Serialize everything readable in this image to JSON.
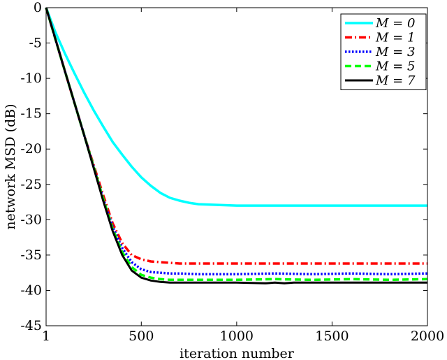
{
  "chart_data": {
    "type": "line",
    "title": "",
    "xlabel": "iteration number",
    "ylabel": "network MSD (dB)",
    "xlim": [
      1,
      2000
    ],
    "ylim": [
      -45,
      0
    ],
    "xticks": [
      1,
      500,
      1000,
      1500,
      2000
    ],
    "yticks": [
      0,
      -5,
      -10,
      -15,
      -20,
      -25,
      -30,
      -35,
      -40,
      -45
    ],
    "xtick_labels": [
      "1",
      "500",
      "1000",
      "1500",
      "2000"
    ],
    "ytick_labels": [
      "0",
      "-5",
      "-10",
      "-15",
      "-20",
      "-25",
      "-30",
      "-35",
      "-40",
      "-45"
    ],
    "grid": false,
    "legend_position": "top-right",
    "series": [
      {
        "name": "M = 0",
        "color": "#00ffff",
        "dash": "solid",
        "x": [
          1,
          50,
          100,
          150,
          200,
          250,
          300,
          350,
          400,
          450,
          500,
          550,
          600,
          650,
          700,
          750,
          800,
          900,
          1000,
          1200,
          1400,
          1600,
          1800,
          2000
        ],
        "y": [
          0,
          -3.5,
          -6.5,
          -9.3,
          -12,
          -14.5,
          -16.8,
          -19,
          -20.8,
          -22.5,
          -24,
          -25.2,
          -26.2,
          -26.9,
          -27.3,
          -27.6,
          -27.8,
          -27.9,
          -28,
          -28,
          -28,
          -28,
          -28,
          -28
        ]
      },
      {
        "name": "M = 1",
        "color": "#ff0000",
        "dash": "dashdot",
        "x": [
          1,
          100,
          200,
          300,
          350,
          400,
          450,
          500,
          550,
          600,
          650,
          700,
          800,
          1000,
          1200,
          1400,
          1600,
          1800,
          2000
        ],
        "y": [
          0,
          -9,
          -18,
          -26.5,
          -30.5,
          -33.3,
          -35,
          -35.6,
          -35.9,
          -36,
          -36.1,
          -36.2,
          -36.2,
          -36.2,
          -36.2,
          -36.2,
          -36.2,
          -36.2,
          -36.2
        ]
      },
      {
        "name": "M = 3",
        "color": "#0000ff",
        "dash": "dotted",
        "x": [
          1,
          100,
          200,
          300,
          350,
          400,
          450,
          500,
          550,
          600,
          650,
          700,
          800,
          1000,
          1200,
          1400,
          1600,
          1800,
          2000
        ],
        "y": [
          0,
          -9,
          -18,
          -27,
          -31,
          -34,
          -36,
          -37,
          -37.4,
          -37.5,
          -37.6,
          -37.6,
          -37.7,
          -37.7,
          -37.6,
          -37.7,
          -37.6,
          -37.7,
          -37.6
        ]
      },
      {
        "name": "M = 5",
        "color": "#00ff00",
        "dash": "dashed",
        "x": [
          1,
          100,
          200,
          300,
          350,
          400,
          450,
          500,
          550,
          600,
          650,
          700,
          800,
          1000,
          1200,
          1400,
          1600,
          1800,
          2000
        ],
        "y": [
          0,
          -9,
          -18,
          -27,
          -31.3,
          -34.6,
          -36.7,
          -37.8,
          -38.2,
          -38.4,
          -38.5,
          -38.5,
          -38.5,
          -38.5,
          -38.4,
          -38.5,
          -38.4,
          -38.5,
          -38.4
        ]
      },
      {
        "name": "M = 7",
        "color": "#000000",
        "dash": "solid",
        "x": [
          1,
          100,
          200,
          300,
          350,
          400,
          450,
          500,
          550,
          600,
          650,
          700,
          800,
          1000,
          1150,
          1200,
          1250,
          1300,
          1400,
          1600,
          1800,
          2000
        ],
        "y": [
          0,
          -9,
          -18,
          -27.3,
          -31.6,
          -35,
          -37.2,
          -38.2,
          -38.6,
          -38.8,
          -38.9,
          -38.9,
          -38.9,
          -38.9,
          -39,
          -38.9,
          -39,
          -38.9,
          -38.9,
          -38.9,
          -38.9,
          -38.9
        ]
      }
    ]
  }
}
